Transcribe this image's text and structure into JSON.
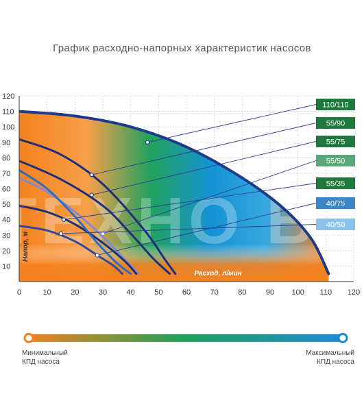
{
  "title": "График расходно-напорных характеристик насосов",
  "chart_data": {
    "type": "line",
    "xlabel": "Расход, л/мин",
    "ylabel": "Напор, м",
    "xlim": [
      0,
      120
    ],
    "ylim": [
      0,
      120
    ],
    "x_ticks": [
      0,
      10,
      20,
      30,
      40,
      50,
      60,
      70,
      80,
      90,
      100,
      110,
      120
    ],
    "y_ticks": [
      10,
      20,
      30,
      40,
      50,
      60,
      70,
      80,
      90,
      100,
      110,
      120
    ],
    "grid": true,
    "watermark": "ТЕХНО ВОД",
    "series": [
      {
        "name": "110/110",
        "color": "#1e3a8a",
        "label_color": "#1e7a3c",
        "marker": [
          46,
          90
        ],
        "x": [
          0,
          20,
          40,
          60,
          80,
          95,
          105,
          111
        ],
        "y": [
          110,
          107,
          100,
          87,
          67,
          47,
          27,
          5
        ]
      },
      {
        "name": "55/90",
        "color": "#1e2e7a",
        "label_color": "#1e7a3c",
        "marker": [
          26,
          69
        ],
        "x": [
          0,
          15,
          30,
          45,
          52,
          56
        ],
        "y": [
          92,
          82,
          63,
          33,
          15,
          5
        ]
      },
      {
        "name": "55/75",
        "color": "#1e2e7a",
        "label_color": "#1e7a3c",
        "marker": [
          26,
          56
        ],
        "x": [
          0,
          15,
          30,
          40,
          48,
          54
        ],
        "y": [
          78,
          66,
          49,
          31,
          15,
          5
        ]
      },
      {
        "name": "55/50",
        "color": "#8888cc",
        "label_color": "#5aa87a",
        "marker": [
          30,
          31
        ],
        "x": [
          0,
          10,
          20,
          30,
          38,
          43
        ],
        "y": [
          67,
          58,
          45,
          29,
          14,
          5
        ]
      },
      {
        "name": "55/35",
        "color": "#1e2e7a",
        "label_color": "#1e7a3c",
        "marker": [
          16,
          40
        ],
        "x": [
          0,
          10,
          20,
          30,
          38,
          42
        ],
        "y": [
          49,
          45,
          37,
          25,
          13,
          5
        ]
      },
      {
        "name": "40/75",
        "color": "#2f6bbf",
        "label_color": "#3a86c8",
        "marker": [
          28,
          17
        ],
        "x": [
          0,
          10,
          20,
          28,
          35,
          40
        ],
        "y": [
          72,
          60,
          42,
          25,
          12,
          5
        ]
      },
      {
        "name": "40/50",
        "color": "#2f4a9a",
        "label_color": "#8cc3e8",
        "marker": [
          15,
          31
        ],
        "x": [
          0,
          10,
          20,
          28,
          34,
          37
        ],
        "y": [
          36,
          33,
          26,
          17,
          10,
          5
        ]
      }
    ]
  },
  "legend": {
    "min_label_line1": "Минимальный",
    "min_label_line2": "КПД насоса",
    "max_label_line1": "Максимальный",
    "max_label_line2": "КПД насоса",
    "min_color": "#f58220",
    "mid_color": "#1ea05a",
    "max_color": "#1e8ad6"
  }
}
